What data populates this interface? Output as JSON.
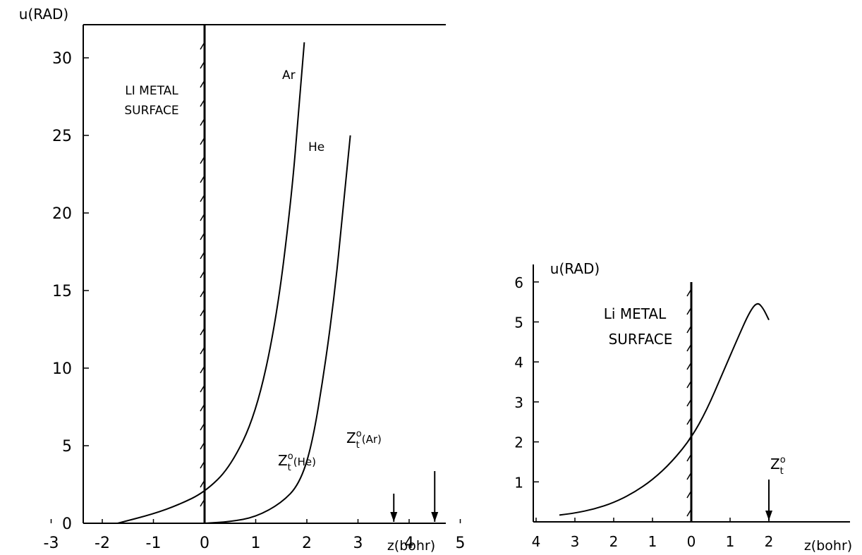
{
  "chart_data": [
    {
      "type": "line",
      "ylabel": "u(RAD)",
      "xlabel": "z(bohr)",
      "xlim": [
        -3.8,
        6.5
      ],
      "ylim": [
        0,
        32
      ],
      "x_ticks": [
        "-3",
        "-2",
        "-1",
        "0",
        "1",
        "2",
        "3",
        "4",
        "5"
      ],
      "y_ticks": [
        "0",
        "5",
        "10",
        "15",
        "20",
        "25",
        "30"
      ],
      "surface_label": [
        "LI METAL",
        "SURFACE"
      ],
      "surface_x": 0,
      "series": [
        {
          "name": "Ar",
          "x": [
            -1.7,
            -1.0,
            -0.5,
            0.0,
            0.5,
            1.0,
            1.4,
            1.7,
            1.85,
            1.95
          ],
          "y": [
            0.0,
            0.6,
            1.2,
            2.0,
            3.6,
            7.0,
            13.0,
            21.0,
            27.0,
            31.0
          ]
        },
        {
          "name": "He",
          "x": [
            0.0,
            0.5,
            1.0,
            1.5,
            1.85,
            2.1,
            2.35,
            2.55,
            2.7,
            2.85
          ],
          "y": [
            0.0,
            0.1,
            0.4,
            1.3,
            2.5,
            5.0,
            10.0,
            15.0,
            20.0,
            25.0
          ]
        }
      ],
      "markers": [
        {
          "label": "Z",
          "sup": "o",
          "sub": "t",
          "suffix": "(He)",
          "x": 3.7
        },
        {
          "label": "Z",
          "sup": "o",
          "sub": "t",
          "suffix": "(Ar)",
          "x": 4.5
        }
      ]
    },
    {
      "type": "line",
      "ylabel": "u(RAD)",
      "xlabel": "z(bohr)",
      "xlim": [
        -4.2,
        3.0
      ],
      "ylim": [
        0,
        6.3
      ],
      "x_ticks": [
        "4",
        "3",
        "2",
        "1",
        "0",
        "1",
        "2"
      ],
      "y_ticks": [
        "1",
        "2",
        "3",
        "4",
        "5",
        "6"
      ],
      "surface_label": [
        "Li METAL",
        "SURFACE"
      ],
      "surface_x": 0,
      "series": [
        {
          "name": "",
          "x": [
            -3.4,
            -3.0,
            -2.5,
            -2.0,
            -1.5,
            -1.0,
            -0.5,
            0.0,
            0.4,
            0.8,
            1.2,
            1.5,
            1.7,
            1.85,
            2.0
          ],
          "y": [
            0.17,
            0.22,
            0.32,
            0.48,
            0.72,
            1.05,
            1.5,
            2.1,
            2.8,
            3.7,
            4.6,
            5.25,
            5.5,
            5.35,
            5.05
          ]
        }
      ],
      "markers": [
        {
          "label": "Z",
          "sup": "o",
          "sub": "t",
          "suffix": "",
          "x": 2.0
        }
      ]
    }
  ]
}
